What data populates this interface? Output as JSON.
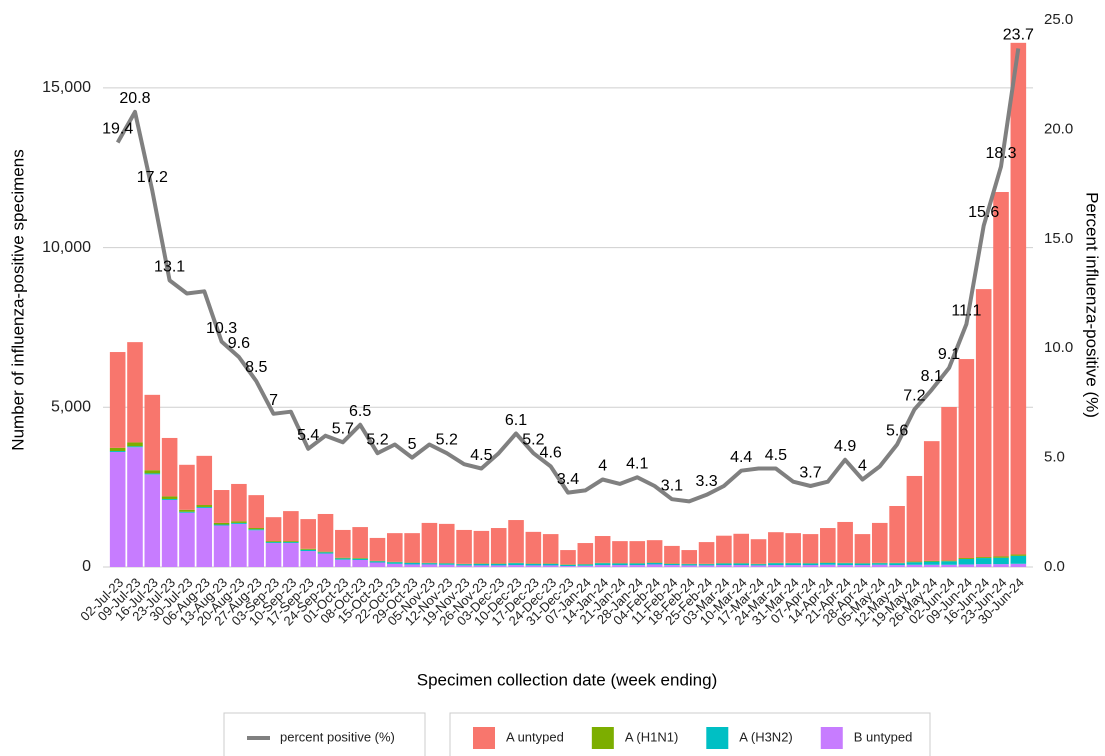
{
  "chart_data": {
    "type": "bar",
    "stacked": true,
    "legend": "bottom",
    "grid": true,
    "x_label": "Specimen collection date (week ending)",
    "y_label": "Number of influenza-positive specimens",
    "y2_label": "Percent influenza-positive (%)",
    "categories": [
      "02-Jul-23",
      "09-Jul-23",
      "16-Jul-23",
      "23-Jul-23",
      "30-Jul-23",
      "06-Aug-23",
      "13-Aug-23",
      "20-Aug-23",
      "27-Aug-23",
      "03-Sep-23",
      "10-Sep-23",
      "17-Sep-23",
      "24-Sep-23",
      "01-Oct-23",
      "08-Oct-23",
      "15-Oct-23",
      "22-Oct-23",
      "29-Oct-23",
      "05-Nov-23",
      "12-Nov-23",
      "19-Nov-23",
      "26-Nov-23",
      "03-Dec-23",
      "10-Dec-23",
      "17-Dec-23",
      "24-Dec-23",
      "31-Dec-23",
      "07-Jan-24",
      "14-Jan-24",
      "21-Jan-24",
      "28-Jan-24",
      "04-Feb-24",
      "11-Feb-24",
      "18-Feb-24",
      "25-Feb-24",
      "03-Mar-24",
      "10-Mar-24",
      "17-Mar-24",
      "24-Mar-24",
      "31-Mar-24",
      "07-Apr-24",
      "14-Apr-24",
      "21-Apr-24",
      "28-Apr-24",
      "05-May-24",
      "12-May-24",
      "19-May-24",
      "26-May-24",
      "02-Jun-24",
      "09-Jun-24",
      "16-Jun-24",
      "23-Jun-24",
      "30-Jun-24"
    ],
    "ylim": [
      0,
      17125
    ],
    "yticks": [
      0,
      {
        "value": 5000,
        "label": "5,000"
      },
      {
        "value": 10000,
        "label": "10,000"
      },
      {
        "value": 15000,
        "label": "15,000"
      }
    ],
    "y2lim": [
      0,
      25
    ],
    "y2ticks": [
      {
        "value": 0,
        "label": "0.0"
      },
      {
        "value": 5,
        "label": "5.0"
      },
      {
        "value": 10,
        "label": "10.0"
      },
      {
        "value": 15,
        "label": "15.0"
      },
      {
        "value": 20,
        "label": "20.0"
      },
      {
        "value": 25,
        "label": "25.0"
      }
    ],
    "series": [
      {
        "name": "percent positive (%)",
        "type": "line",
        "axis": "y2",
        "color": "#808080",
        "values": [
          19.4,
          20.8,
          17.2,
          13.1,
          12.5,
          12.6,
          10.3,
          9.6,
          8.5,
          7,
          7.1,
          5.4,
          6.0,
          5.7,
          6.5,
          5.2,
          5.6,
          5,
          5.6,
          5.2,
          4.7,
          4.5,
          5.2,
          6.1,
          5.2,
          4.6,
          3.4,
          3.5,
          4,
          3.8,
          4.1,
          3.7,
          3.1,
          3.0,
          3.3,
          3.7,
          4.4,
          4.5,
          4.5,
          3.9,
          3.7,
          3.9,
          4.9,
          4,
          4.6,
          5.6,
          7.2,
          8.1,
          9.1,
          11.1,
          15.6,
          18.3,
          23.7
        ],
        "value_labels": [
          "19.4",
          "20.8",
          "17.2",
          "13.1",
          null,
          null,
          "10.3",
          "9.6",
          "8.5",
          "7",
          null,
          "5.4",
          null,
          "5.7",
          "6.5",
          "5.2",
          null,
          "5",
          null,
          "5.2",
          null,
          "4.5",
          null,
          "6.1",
          "5.2",
          "4.6",
          "3.4",
          null,
          "4",
          null,
          "4.1",
          null,
          "3.1",
          null,
          "3.3",
          null,
          "4.4",
          null,
          "4.5",
          null,
          "3.7",
          null,
          "4.9",
          "4",
          null,
          "5.6",
          "7.2",
          "8.1",
          "9.1",
          "11.1",
          "15.6",
          "18.3",
          "23.7"
        ]
      },
      {
        "name": "A untyped",
        "color": "#F8766D",
        "values": [
          3000,
          3140,
          2360,
          1830,
          1410,
          1540,
          1030,
          1170,
          1030,
          750,
          940,
          930,
          1180,
          870,
          970,
          720,
          900,
          920,
          1250,
          1230,
          1060,
          1020,
          1110,
          1340,
          990,
          920,
          450,
          660,
          840,
          690,
          690,
          700,
          550,
          430,
          680,
          860,
          920,
          770,
          960,
          930,
          910,
          1080,
          1280,
          910,
          1250,
          1780,
          2680,
          3750,
          4810,
          6230,
          8390,
          11410,
          16020
        ]
      },
      {
        "name": "A (H1N1)",
        "color": "#7CAE00",
        "values": [
          100,
          120,
          100,
          80,
          60,
          60,
          50,
          50,
          40,
          30,
          30,
          30,
          20,
          20,
          20,
          10,
          10,
          10,
          10,
          10,
          10,
          10,
          10,
          10,
          10,
          10,
          10,
          10,
          10,
          10,
          10,
          10,
          10,
          10,
          10,
          10,
          10,
          10,
          10,
          10,
          10,
          10,
          10,
          10,
          10,
          10,
          20,
          20,
          20,
          30,
          30,
          40,
          40
        ]
      },
      {
        "name": "A (H3N2)",
        "color": "#00BFC4",
        "values": [
          30,
          30,
          30,
          30,
          30,
          30,
          30,
          30,
          30,
          30,
          30,
          40,
          40,
          40,
          40,
          40,
          50,
          50,
          40,
          40,
          40,
          50,
          50,
          60,
          50,
          50,
          40,
          40,
          60,
          50,
          50,
          50,
          40,
          40,
          40,
          50,
          50,
          40,
          60,
          60,
          50,
          60,
          60,
          50,
          50,
          60,
          80,
          100,
          110,
          170,
          190,
          200,
          250
        ]
      },
      {
        "name": "B untyped",
        "color": "#C77CFF",
        "values": [
          3600,
          3750,
          2900,
          2100,
          1700,
          1850,
          1300,
          1350,
          1150,
          750,
          750,
          500,
          420,
          230,
          220,
          140,
          100,
          80,
          80,
          70,
          50,
          50,
          50,
          60,
          50,
          50,
          30,
          40,
          60,
          60,
          60,
          80,
          60,
          50,
          50,
          60,
          60,
          50,
          60,
          60,
          60,
          70,
          60,
          60,
          70,
          60,
          70,
          70,
          70,
          80,
          90,
          90,
          100
        ]
      }
    ]
  }
}
